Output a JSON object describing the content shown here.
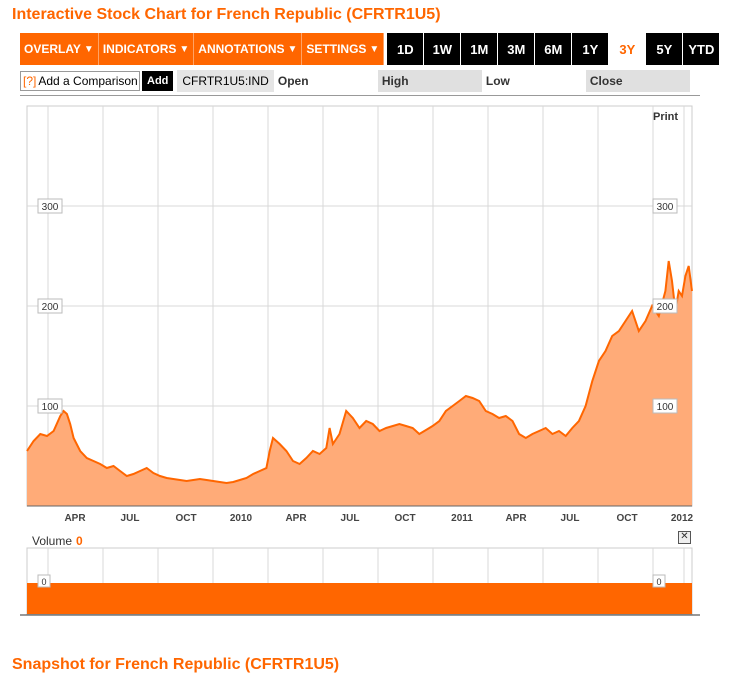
{
  "title": "Interactive Stock Chart for French Republic (CFRTR1U5)",
  "toolbar": {
    "menus": [
      {
        "label": "OVERLAY",
        "arrow": "▼"
      },
      {
        "label": "INDICATORS",
        "arrow": "▼"
      },
      {
        "label": "ANNOTATIONS",
        "arrow": "▼"
      },
      {
        "label": "SETTINGS",
        "arrow": "▼"
      }
    ],
    "ranges": [
      "1D",
      "1W",
      "1M",
      "3M",
      "6M",
      "1Y",
      "3Y",
      "5Y",
      "YTD"
    ],
    "active_range": "3Y"
  },
  "comparison": {
    "help": "[?]",
    "placeholder": "Add a Comparison",
    "add_label": "Add"
  },
  "symbol": "CFRTR1U5:IND",
  "fields": {
    "open": "Open",
    "high": "High",
    "low": "Low",
    "close": "Close"
  },
  "print_label": "Print",
  "volume": {
    "label": "Volume",
    "value": "0"
  },
  "snapshot_title": "Snapshot for French Republic (CFRTR1U5)",
  "colors": {
    "accent": "#ff6600",
    "fill": "#ffab78",
    "grid": "#d8d8d8"
  },
  "chart_data": {
    "type": "area",
    "series": [
      {
        "name": "CFRTR1U5:IND",
        "values": []
      }
    ],
    "x_tick_labels": [
      "APR",
      "JUL",
      "OCT",
      "2010",
      "APR",
      "JUL",
      "OCT",
      "2011",
      "APR",
      "JUL",
      "OCT",
      "2012"
    ],
    "y_tick_labels": [
      "100",
      "200",
      "300"
    ],
    "ylim": [
      0,
      400
    ],
    "grid": true,
    "volume_axis_labels": [
      "0",
      "0"
    ],
    "points": [
      [
        0,
        55
      ],
      [
        0.01,
        65
      ],
      [
        0.02,
        72
      ],
      [
        0.03,
        70
      ],
      [
        0.04,
        75
      ],
      [
        0.05,
        90
      ],
      [
        0.055,
        95
      ],
      [
        0.06,
        92
      ],
      [
        0.065,
        82
      ],
      [
        0.07,
        68
      ],
      [
        0.08,
        55
      ],
      [
        0.09,
        48
      ],
      [
        0.1,
        45
      ],
      [
        0.11,
        42
      ],
      [
        0.12,
        38
      ],
      [
        0.13,
        40
      ],
      [
        0.14,
        35
      ],
      [
        0.15,
        30
      ],
      [
        0.16,
        32
      ],
      [
        0.17,
        35
      ],
      [
        0.18,
        38
      ],
      [
        0.19,
        33
      ],
      [
        0.2,
        30
      ],
      [
        0.21,
        28
      ],
      [
        0.22,
        27
      ],
      [
        0.23,
        26
      ],
      [
        0.24,
        25
      ],
      [
        0.25,
        26
      ],
      [
        0.26,
        27
      ],
      [
        0.27,
        26
      ],
      [
        0.28,
        25
      ],
      [
        0.29,
        24
      ],
      [
        0.3,
        23
      ],
      [
        0.31,
        24
      ],
      [
        0.32,
        26
      ],
      [
        0.33,
        28
      ],
      [
        0.34,
        32
      ],
      [
        0.35,
        35
      ],
      [
        0.36,
        38
      ],
      [
        0.365,
        55
      ],
      [
        0.37,
        68
      ],
      [
        0.38,
        62
      ],
      [
        0.39,
        55
      ],
      [
        0.4,
        45
      ],
      [
        0.41,
        42
      ],
      [
        0.42,
        48
      ],
      [
        0.43,
        55
      ],
      [
        0.44,
        52
      ],
      [
        0.45,
        58
      ],
      [
        0.455,
        78
      ],
      [
        0.46,
        62
      ],
      [
        0.47,
        72
      ],
      [
        0.48,
        95
      ],
      [
        0.49,
        88
      ],
      [
        0.5,
        78
      ],
      [
        0.51,
        85
      ],
      [
        0.52,
        82
      ],
      [
        0.53,
        75
      ],
      [
        0.54,
        78
      ],
      [
        0.55,
        80
      ],
      [
        0.56,
        82
      ],
      [
        0.57,
        80
      ],
      [
        0.58,
        78
      ],
      [
        0.59,
        72
      ],
      [
        0.6,
        76
      ],
      [
        0.61,
        80
      ],
      [
        0.62,
        85
      ],
      [
        0.63,
        95
      ],
      [
        0.64,
        100
      ],
      [
        0.65,
        105
      ],
      [
        0.66,
        110
      ],
      [
        0.67,
        108
      ],
      [
        0.68,
        105
      ],
      [
        0.69,
        95
      ],
      [
        0.7,
        92
      ],
      [
        0.71,
        88
      ],
      [
        0.72,
        90
      ],
      [
        0.73,
        85
      ],
      [
        0.74,
        72
      ],
      [
        0.75,
        68
      ],
      [
        0.76,
        72
      ],
      [
        0.77,
        75
      ],
      [
        0.78,
        78
      ],
      [
        0.79,
        72
      ],
      [
        0.8,
        75
      ],
      [
        0.81,
        70
      ],
      [
        0.82,
        78
      ],
      [
        0.83,
        85
      ],
      [
        0.84,
        100
      ],
      [
        0.85,
        125
      ],
      [
        0.86,
        145
      ],
      [
        0.87,
        155
      ],
      [
        0.88,
        170
      ],
      [
        0.89,
        175
      ],
      [
        0.9,
        185
      ],
      [
        0.91,
        195
      ],
      [
        0.92,
        175
      ],
      [
        0.93,
        185
      ],
      [
        0.94,
        200
      ],
      [
        0.95,
        190
      ],
      [
        0.96,
        215
      ],
      [
        0.965,
        245
      ],
      [
        0.97,
        225
      ],
      [
        0.975,
        195
      ],
      [
        0.98,
        215
      ],
      [
        0.985,
        210
      ],
      [
        0.99,
        230
      ],
      [
        0.995,
        240
      ],
      [
        1.0,
        215
      ]
    ]
  }
}
